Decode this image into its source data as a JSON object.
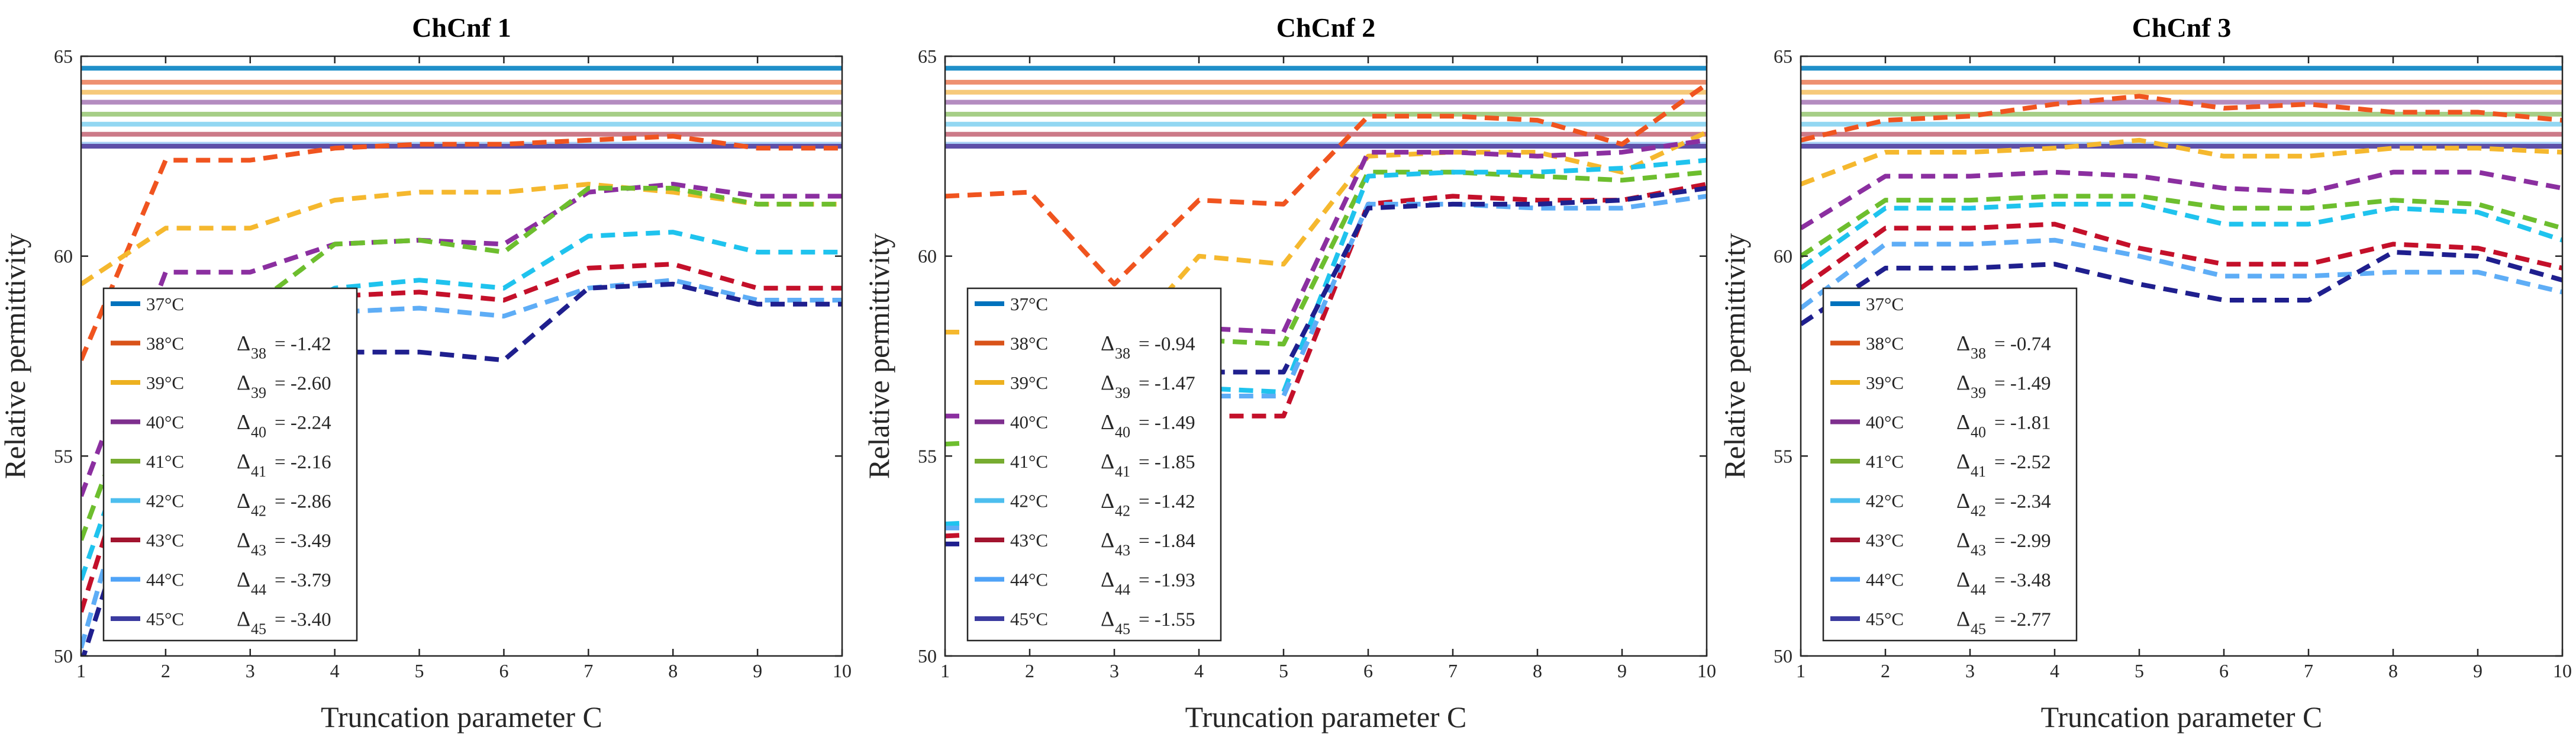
{
  "chart_data": [
    {
      "type": "line",
      "title": "ChCnf 1",
      "xlabel": "Truncation parameter C",
      "ylabel": "Relative permittivity",
      "xlim": [
        1,
        10
      ],
      "ylim": [
        50,
        65
      ],
      "xticks": [
        "1",
        "2",
        "3",
        "4",
        "5",
        "6",
        "7",
        "8",
        "9",
        "10"
      ],
      "yticks": [
        "50",
        "55",
        "60",
        "65"
      ],
      "x": [
        1,
        2,
        3,
        4,
        5,
        6,
        7,
        8,
        9,
        10
      ],
      "references": [
        {
          "name": "37°C",
          "value": 64.7
        },
        {
          "name": "38°C",
          "value": 64.35
        },
        {
          "name": "39°C",
          "value": 64.1
        },
        {
          "name": "40°C",
          "value": 63.85
        },
        {
          "name": "41°C",
          "value": 63.55
        },
        {
          "name": "42°C",
          "value": 63.3
        },
        {
          "name": "43°C",
          "value": 63.05
        },
        {
          "name": "44°C",
          "value": 62.8
        },
        {
          "name": "45°C",
          "value": 62.75
        }
      ],
      "series": [
        {
          "name": "38°C",
          "values": [
            57.4,
            62.4,
            62.4,
            62.7,
            62.8,
            62.8,
            62.9,
            63.0,
            62.7,
            62.7
          ]
        },
        {
          "name": "39°C",
          "values": [
            59.3,
            60.7,
            60.7,
            61.4,
            61.6,
            61.6,
            61.8,
            61.6,
            61.3,
            61.3
          ]
        },
        {
          "name": "40°C",
          "values": [
            54.0,
            59.6,
            59.6,
            60.3,
            60.4,
            60.3,
            61.6,
            61.8,
            61.5,
            61.5
          ]
        },
        {
          "name": "41°C",
          "values": [
            52.9,
            58.6,
            58.7,
            60.3,
            60.4,
            60.1,
            61.7,
            61.7,
            61.3,
            61.3
          ]
        },
        {
          "name": "42°C",
          "values": [
            51.9,
            58.0,
            58.1,
            59.2,
            59.4,
            59.2,
            60.5,
            60.6,
            60.1,
            60.1
          ]
        },
        {
          "name": "43°C",
          "values": [
            51.1,
            57.8,
            57.9,
            59.0,
            59.1,
            58.9,
            59.7,
            59.8,
            59.2,
            59.2
          ]
        },
        {
          "name": "44°C",
          "values": [
            50.2,
            57.6,
            57.7,
            58.6,
            58.7,
            58.5,
            59.2,
            59.4,
            58.9,
            58.9
          ]
        },
        {
          "name": "45°C",
          "values": [
            49.8,
            56.4,
            56.5,
            57.6,
            57.6,
            57.4,
            59.2,
            59.3,
            58.8,
            58.8
          ]
        }
      ],
      "legend": {
        "position": "bottom-left",
        "entries": [
          {
            "name": "37°C",
            "delta_sub": "",
            "delta_value": ""
          },
          {
            "name": "38°C",
            "delta_sub": "38",
            "delta_value": "= -1.42"
          },
          {
            "name": "39°C",
            "delta_sub": "39",
            "delta_value": "= -2.60"
          },
          {
            "name": "40°C",
            "delta_sub": "40",
            "delta_value": "= -2.24"
          },
          {
            "name": "41°C",
            "delta_sub": "41",
            "delta_value": "= -2.16"
          },
          {
            "name": "42°C",
            "delta_sub": "42",
            "delta_value": "= -2.86"
          },
          {
            "name": "43°C",
            "delta_sub": "43",
            "delta_value": "= -3.49"
          },
          {
            "name": "44°C",
            "delta_sub": "44",
            "delta_value": "= -3.79"
          },
          {
            "name": "45°C",
            "delta_sub": "45",
            "delta_value": "= -3.40"
          }
        ]
      }
    },
    {
      "type": "line",
      "title": "ChCnf 2",
      "xlabel": "Truncation parameter C",
      "ylabel": "Relative permittivity",
      "xlim": [
        1,
        10
      ],
      "ylim": [
        50,
        65
      ],
      "xticks": [
        "1",
        "2",
        "3",
        "4",
        "5",
        "6",
        "7",
        "8",
        "9",
        "10"
      ],
      "yticks": [
        "50",
        "55",
        "60",
        "65"
      ],
      "x": [
        1,
        2,
        3,
        4,
        5,
        6,
        7,
        8,
        9,
        10
      ],
      "references": [
        {
          "name": "37°C",
          "value": 64.7
        },
        {
          "name": "38°C",
          "value": 64.35
        },
        {
          "name": "39°C",
          "value": 64.1
        },
        {
          "name": "40°C",
          "value": 63.85
        },
        {
          "name": "41°C",
          "value": 63.55
        },
        {
          "name": "42°C",
          "value": 63.3
        },
        {
          "name": "43°C",
          "value": 63.05
        },
        {
          "name": "44°C",
          "value": 62.8
        },
        {
          "name": "45°C",
          "value": 62.75
        }
      ],
      "series": [
        {
          "name": "38°C",
          "values": [
            61.5,
            61.6,
            59.3,
            61.4,
            61.3,
            63.5,
            63.5,
            63.4,
            62.8,
            64.3
          ]
        },
        {
          "name": "39°C",
          "values": [
            58.1,
            58.1,
            57.6,
            60.0,
            59.8,
            62.5,
            62.6,
            62.6,
            62.1,
            63.1
          ]
        },
        {
          "name": "40°C",
          "values": [
            56.0,
            56.0,
            55.8,
            58.2,
            58.1,
            62.6,
            62.6,
            62.5,
            62.6,
            62.9
          ]
        },
        {
          "name": "41°C",
          "values": [
            55.3,
            55.4,
            55.3,
            57.9,
            57.8,
            62.1,
            62.1,
            62.0,
            61.9,
            62.1
          ]
        },
        {
          "name": "42°C",
          "values": [
            53.3,
            53.4,
            53.6,
            56.7,
            56.6,
            62.0,
            62.1,
            62.1,
            62.2,
            62.4
          ]
        },
        {
          "name": "43°C",
          "values": [
            53.0,
            53.1,
            53.3,
            56.0,
            56.0,
            61.3,
            61.5,
            61.4,
            61.4,
            61.8
          ]
        },
        {
          "name": "44°C",
          "values": [
            53.2,
            53.2,
            53.4,
            56.5,
            56.5,
            61.3,
            61.3,
            61.2,
            61.2,
            61.5
          ]
        },
        {
          "name": "45°C",
          "values": [
            52.8,
            52.8,
            53.2,
            57.1,
            57.1,
            61.2,
            61.3,
            61.3,
            61.4,
            61.7
          ]
        }
      ],
      "legend": {
        "position": "bottom-left",
        "entries": [
          {
            "name": "37°C",
            "delta_sub": "",
            "delta_value": ""
          },
          {
            "name": "38°C",
            "delta_sub": "38",
            "delta_value": "= -0.94"
          },
          {
            "name": "39°C",
            "delta_sub": "39",
            "delta_value": "= -1.47"
          },
          {
            "name": "40°C",
            "delta_sub": "40",
            "delta_value": "= -1.49"
          },
          {
            "name": "41°C",
            "delta_sub": "41",
            "delta_value": "= -1.85"
          },
          {
            "name": "42°C",
            "delta_sub": "42",
            "delta_value": "= -1.42"
          },
          {
            "name": "43°C",
            "delta_sub": "43",
            "delta_value": "= -1.84"
          },
          {
            "name": "44°C",
            "delta_sub": "44",
            "delta_value": "= -1.93"
          },
          {
            "name": "45°C",
            "delta_sub": "45",
            "delta_value": "= -1.55"
          }
        ]
      }
    },
    {
      "type": "line",
      "title": "ChCnf 3",
      "xlabel": "Truncation parameter C",
      "ylabel": "Relative permittivity",
      "xlim": [
        1,
        10
      ],
      "ylim": [
        50,
        65
      ],
      "xticks": [
        "1",
        "2",
        "3",
        "4",
        "5",
        "6",
        "7",
        "8",
        "9",
        "10"
      ],
      "yticks": [
        "50",
        "55",
        "60",
        "65"
      ],
      "x": [
        1,
        2,
        3,
        4,
        5,
        6,
        7,
        8,
        9,
        10
      ],
      "references": [
        {
          "name": "37°C",
          "value": 64.7
        },
        {
          "name": "38°C",
          "value": 64.35
        },
        {
          "name": "39°C",
          "value": 64.1
        },
        {
          "name": "40°C",
          "value": 63.85
        },
        {
          "name": "41°C",
          "value": 63.55
        },
        {
          "name": "42°C",
          "value": 63.3
        },
        {
          "name": "43°C",
          "value": 63.05
        },
        {
          "name": "44°C",
          "value": 62.8
        },
        {
          "name": "45°C",
          "value": 62.75
        }
      ],
      "series": [
        {
          "name": "38°C",
          "values": [
            62.9,
            63.4,
            63.5,
            63.8,
            64.0,
            63.7,
            63.8,
            63.6,
            63.6,
            63.4
          ]
        },
        {
          "name": "39°C",
          "values": [
            61.8,
            62.6,
            62.6,
            62.7,
            62.9,
            62.5,
            62.5,
            62.7,
            62.7,
            62.6
          ]
        },
        {
          "name": "40°C",
          "values": [
            60.7,
            62.0,
            62.0,
            62.1,
            62.0,
            61.7,
            61.6,
            62.1,
            62.1,
            61.7
          ]
        },
        {
          "name": "41°C",
          "values": [
            60.0,
            61.4,
            61.4,
            61.5,
            61.5,
            61.2,
            61.2,
            61.4,
            61.3,
            60.7
          ]
        },
        {
          "name": "42°C",
          "values": [
            59.7,
            61.2,
            61.2,
            61.3,
            61.3,
            60.8,
            60.8,
            61.2,
            61.1,
            60.4
          ]
        },
        {
          "name": "43°C",
          "values": [
            59.2,
            60.7,
            60.7,
            60.8,
            60.2,
            59.8,
            59.8,
            60.3,
            60.2,
            59.7
          ]
        },
        {
          "name": "44°C",
          "values": [
            58.7,
            60.3,
            60.3,
            60.4,
            60.0,
            59.5,
            59.5,
            59.6,
            59.6,
            59.1
          ]
        },
        {
          "name": "45°C",
          "values": [
            58.3,
            59.7,
            59.7,
            59.8,
            59.3,
            58.9,
            58.9,
            60.1,
            60.0,
            59.4
          ]
        }
      ],
      "legend": {
        "position": "bottom-left",
        "entries": [
          {
            "name": "37°C",
            "delta_sub": "",
            "delta_value": ""
          },
          {
            "name": "38°C",
            "delta_sub": "38",
            "delta_value": "= -0.74"
          },
          {
            "name": "39°C",
            "delta_sub": "39",
            "delta_value": "= -1.49"
          },
          {
            "name": "40°C",
            "delta_sub": "40",
            "delta_value": "= -1.81"
          },
          {
            "name": "41°C",
            "delta_sub": "41",
            "delta_value": "= -2.52"
          },
          {
            "name": "42°C",
            "delta_sub": "42",
            "delta_value": "= -2.34"
          },
          {
            "name": "43°C",
            "delta_sub": "43",
            "delta_value": "= -2.99"
          },
          {
            "name": "44°C",
            "delta_sub": "44",
            "delta_value": "= -3.48"
          },
          {
            "name": "45°C",
            "delta_sub": "45",
            "delta_value": "= -2.77"
          }
        ]
      }
    }
  ],
  "palette": {
    "37°C": "#0072BD",
    "38°C": "#D95319",
    "39°C": "#EDB120",
    "40°C": "#7E2F8E",
    "41°C": "#77AC30",
    "42°C": "#4DBEEE",
    "43°C": "#A2142F",
    "44°C": "#4FA3F7",
    "45°C": "#3B3BA0"
  },
  "reference_palette": {
    "37°C": "#1F8FC9",
    "38°C": "#EE9070",
    "39°C": "#F6C97A",
    "40°C": "#B48CC0",
    "41°C": "#A6CE86",
    "42°C": "#93D7F2",
    "43°C": "#CC7A88",
    "44°C": "#A9CFF6",
    "45°C": "#5E4FA8"
  },
  "series_palette": {
    "38°C": "#F0541F",
    "39°C": "#F5B82E",
    "40°C": "#8B2FA0",
    "41°C": "#6DBE2E",
    "42°C": "#1FC3EE",
    "43°C": "#C4102A",
    "44°C": "#5EADF6",
    "45°C": "#1F1F8E"
  }
}
